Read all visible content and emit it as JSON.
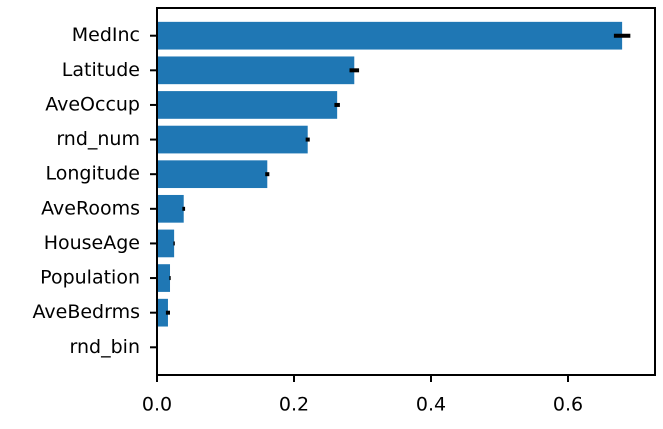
{
  "chart_data": {
    "type": "bar",
    "orientation": "horizontal",
    "categories": [
      "MedInc",
      "Latitude",
      "AveOccup",
      "rnd_num",
      "Longitude",
      "AveRooms",
      "HouseAge",
      "Population",
      "AveBedrms",
      "rnd_bin"
    ],
    "values": [
      0.679,
      0.288,
      0.263,
      0.22,
      0.161,
      0.039,
      0.025,
      0.019,
      0.016,
      0.0
    ],
    "errors": [
      0.012,
      0.007,
      0.004,
      0.003,
      0.003,
      0.002,
      0.001,
      0.001,
      0.003,
      0.0
    ],
    "color": "#1f77b4",
    "error_color": "#000000",
    "xlim": [
      0,
      0.727
    ],
    "xticks": [
      {
        "value": 0,
        "label": "0.0"
      },
      0.2,
      0.4,
      0.6
    ]
  }
}
